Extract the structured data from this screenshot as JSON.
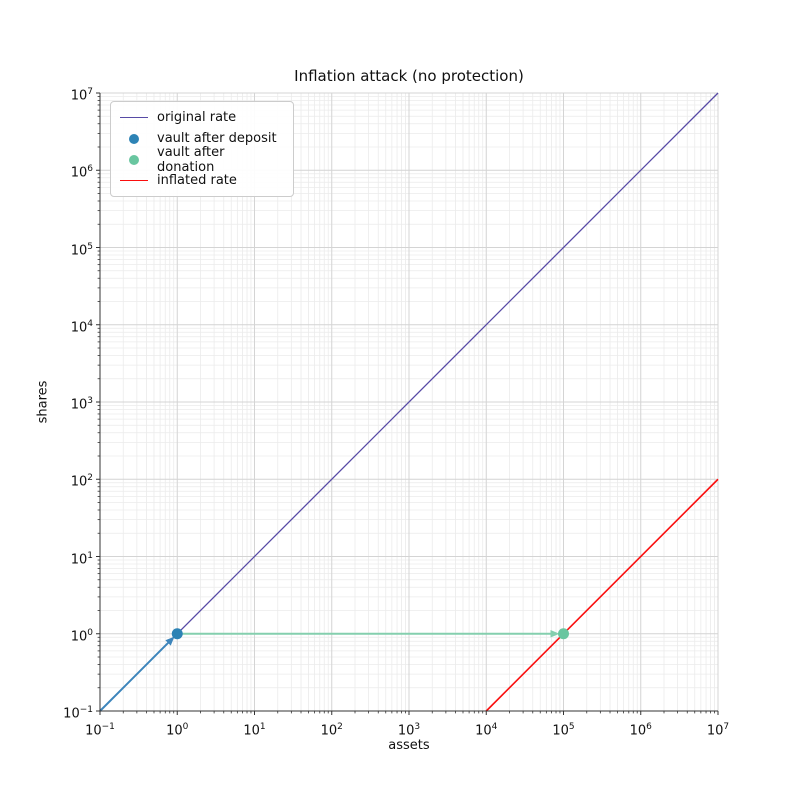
{
  "figure": {
    "background": "#ffffff"
  },
  "chart_data": {
    "type": "line",
    "title": "Inflation attack (no protection)",
    "xlabel": "assets",
    "ylabel": "shares",
    "xscale": "log",
    "yscale": "log",
    "xlim": [
      0.1,
      10000000
    ],
    "ylim": [
      0.1,
      10000000
    ],
    "grid": "both",
    "x_tick_exponents": [
      -1,
      0,
      1,
      2,
      3,
      4,
      5,
      6,
      7
    ],
    "y_tick_exponents": [
      -1,
      0,
      1,
      2,
      3,
      4,
      5,
      6,
      7
    ],
    "tick_base": "10",
    "series": [
      {
        "name": "original rate",
        "kind": "line",
        "color": "#574aa5",
        "width": 1.3,
        "points": [
          [
            0.1,
            0.1
          ],
          [
            10000000,
            10000000
          ]
        ]
      },
      {
        "name": "inflated rate",
        "kind": "line",
        "color": "#fa0e0e",
        "width": 1.6,
        "points": [
          [
            10000,
            0.1
          ],
          [
            10000000,
            100
          ]
        ]
      },
      {
        "name": "deposit arrow",
        "kind": "arrow",
        "color": "#3d85bb",
        "width": 2.0,
        "points": [
          [
            0.1,
            0.1
          ],
          [
            1,
            1
          ]
        ]
      },
      {
        "name": "donation arrow",
        "kind": "arrow",
        "color": "#84cfae",
        "width": 2.0,
        "points": [
          [
            1,
            1
          ],
          [
            100000,
            1
          ]
        ]
      },
      {
        "name": "vault after deposit",
        "kind": "scatter",
        "color": "#2d83b5",
        "radius": 5.5,
        "points": [
          [
            1,
            1
          ]
        ]
      },
      {
        "name": "vault after donation",
        "kind": "scatter",
        "color": "#69c6a0",
        "radius": 5.5,
        "points": [
          [
            100000,
            1
          ]
        ]
      }
    ],
    "legend": {
      "position": "upper left",
      "entries": [
        {
          "label": "original rate",
          "swatch": "line",
          "color": "#574aa5"
        },
        {
          "label": "vault after deposit",
          "swatch": "dot",
          "color": "#2d83b5"
        },
        {
          "label": "vault after donation",
          "swatch": "dot",
          "color": "#69c6a0"
        },
        {
          "label": "inflated rate",
          "swatch": "line",
          "color": "#fa0e0e"
        }
      ]
    },
    "colors": {
      "grid_major": "#d4d4d4",
      "grid_minor": "#ebebeb",
      "spine": "#333333",
      "tick": "#333333",
      "text": "#111111"
    }
  }
}
